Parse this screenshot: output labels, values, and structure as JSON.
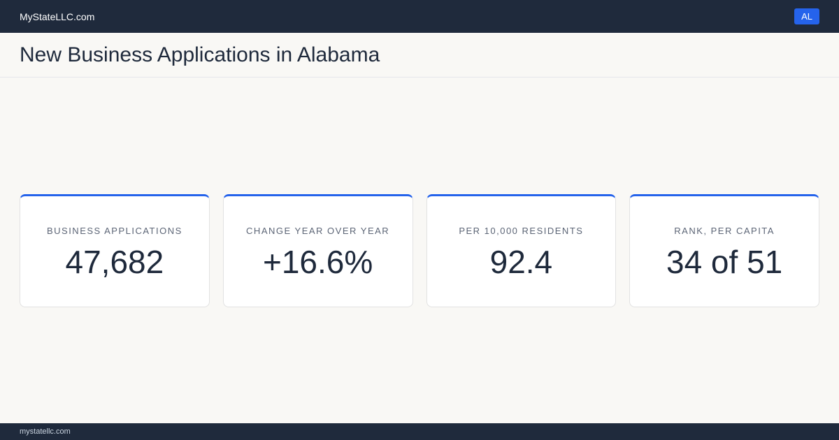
{
  "header": {
    "brand": "MyStateLLC.com",
    "badge": "AL"
  },
  "title": "New Business Applications in Alabama",
  "cards": [
    {
      "label": "BUSINESS APPLICATIONS",
      "value": "47,682"
    },
    {
      "label": "CHANGE YEAR OVER YEAR",
      "value": "+16.6%"
    },
    {
      "label": "PER 10,000 RESIDENTS",
      "value": "92.4"
    },
    {
      "label": "RANK, PER CAPITA",
      "value": "34 of 51"
    }
  ],
  "footer": {
    "url": "mystatellc.com"
  }
}
